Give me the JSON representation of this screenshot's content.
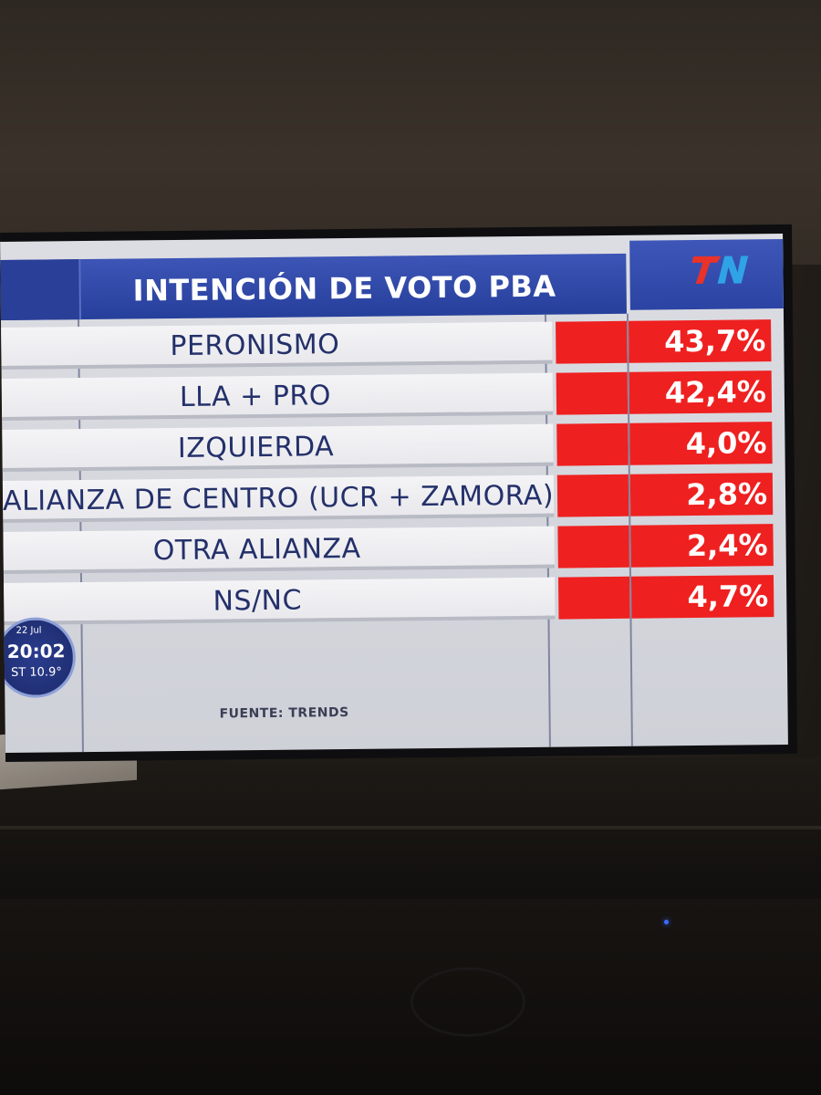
{
  "chart_data": {
    "type": "bar",
    "title": "INTENCIÓN DE VOTO PBA",
    "categories": [
      "PERONISMO",
      "LLA + PRO",
      "IZQUIERDA",
      "ALIANZA DE CENTRO (UCR + ZAMORA)",
      "OTRA ALIANZA",
      "NS/NC"
    ],
    "values": [
      43.7,
      42.4,
      4.0,
      2.8,
      2.4,
      4.7
    ],
    "value_labels": [
      "43,7%",
      "42,4%",
      "4,0%",
      "2,8%",
      "2,4%",
      "4,7%"
    ],
    "source": "FUENTE: TRENDS"
  },
  "broadcast": {
    "logo": "TN",
    "date": "22 Jul",
    "time": "20:02",
    "temperature": "ST 10.9°"
  },
  "colors": {
    "header_blue": "#2b44a3",
    "value_red": "#ef2020",
    "label_text": "#24306a"
  }
}
